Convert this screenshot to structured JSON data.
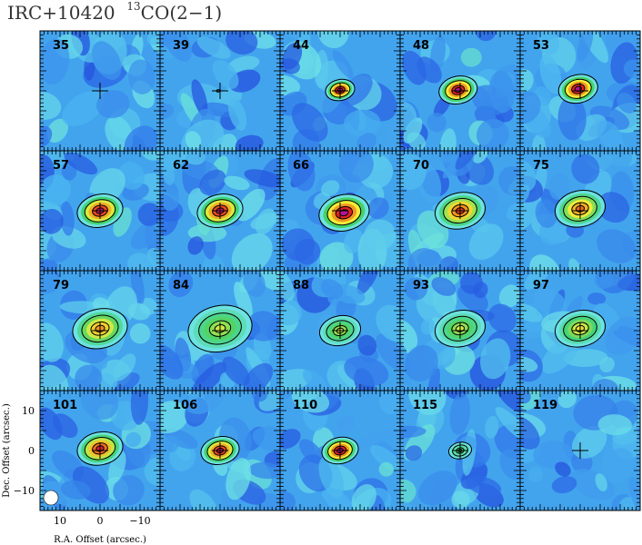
{
  "title": {
    "source": "IRC+10420",
    "isotope_sup": "13",
    "line": "CO(2−1)"
  },
  "chart_data": {
    "type": "heatmap",
    "description_grid": "4 rows x 5 columns channel maps",
    "xlabel": "R.A. Offset (arcsec.)",
    "ylabel": "Dec. Offset (arcsec.)",
    "xlim": [
      15,
      -15
    ],
    "ylim": [
      -15,
      15
    ],
    "x_ticks": [
      "10",
      "0",
      "−10"
    ],
    "x_tick_values": [
      10,
      0,
      -10
    ],
    "y_ticks": [
      "10",
      "0",
      "−10"
    ],
    "y_tick_values": [
      10,
      0,
      -10
    ],
    "beam_shown": true,
    "colormap": [
      "#1c3bd6",
      "#2f74e8",
      "#49b3f0",
      "#6fe3e8",
      "#41d16a",
      "#f0f03a",
      "#f29a1f",
      "#e02222",
      "#b3139b"
    ],
    "contour_color": "#000000",
    "marker": "cross at (0,0)",
    "panels": [
      {
        "velocity": "35",
        "peak": 0.05,
        "size": 0,
        "dx": 0,
        "dy": 0
      },
      {
        "velocity": "39",
        "peak": 0.35,
        "size": 2.2,
        "dx": 0.5,
        "dy": 0
      },
      {
        "velocity": "44",
        "peak": 1.0,
        "size": 3.2,
        "dx": 0,
        "dy": 0.2
      },
      {
        "velocity": "48",
        "peak": 1.0,
        "size": 4.2,
        "dx": 0.5,
        "dy": 0.2
      },
      {
        "velocity": "53",
        "peak": 1.0,
        "size": 4.3,
        "dx": 0.5,
        "dy": 0.5
      },
      {
        "velocity": "57",
        "peak": 0.95,
        "size": 5.0,
        "dx": 0,
        "dy": 0
      },
      {
        "velocity": "62",
        "peak": 0.95,
        "size": 5.0,
        "dx": 0,
        "dy": 0
      },
      {
        "velocity": "66",
        "peak": 1.0,
        "size": 5.5,
        "dx": -1,
        "dy": -0.5
      },
      {
        "velocity": "70",
        "peak": 0.85,
        "size": 5.5,
        "dx": 0,
        "dy": 0
      },
      {
        "velocity": "75",
        "peak": 0.8,
        "size": 5.5,
        "dx": 0,
        "dy": 0.5
      },
      {
        "velocity": "79",
        "peak": 0.75,
        "size": 6.0,
        "dx": 0,
        "dy": 0.5
      },
      {
        "velocity": "84",
        "peak": 0.6,
        "size": 7.0,
        "dx": 0,
        "dy": 0.5
      },
      {
        "velocity": "88",
        "peak": 0.6,
        "size": 4.5,
        "dx": 0,
        "dy": 0
      },
      {
        "velocity": "93",
        "peak": 0.6,
        "size": 5.5,
        "dx": 0,
        "dy": 0.5
      },
      {
        "velocity": "97",
        "peak": 0.65,
        "size": 5.5,
        "dx": 0,
        "dy": 0.5
      },
      {
        "velocity": "101",
        "peak": 0.9,
        "size": 5.0,
        "dx": 0,
        "dy": 0.5
      },
      {
        "velocity": "106",
        "peak": 0.95,
        "size": 4.2,
        "dx": 0,
        "dy": 0
      },
      {
        "velocity": "110",
        "peak": 1.0,
        "size": 4.0,
        "dx": 0,
        "dy": 0
      },
      {
        "velocity": "115",
        "peak": 0.5,
        "size": 2.5,
        "dx": 0,
        "dy": 0
      },
      {
        "velocity": "119",
        "peak": 0.05,
        "size": 0,
        "dx": 0,
        "dy": 0
      }
    ]
  }
}
